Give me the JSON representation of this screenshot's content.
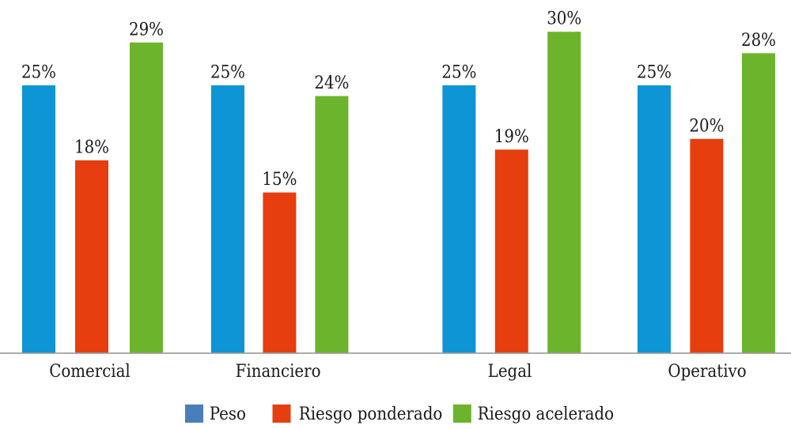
{
  "chart_data": {
    "type": "bar",
    "title": "",
    "xlabel": "",
    "ylabel": "",
    "categories": [
      "Comercial",
      "Financiero",
      "Legal",
      "Operativo"
    ],
    "series": [
      {
        "name": "Peso",
        "color": "#0D95D5",
        "legend_swatch_color": "#4A7EBB",
        "values": [
          25,
          25,
          25,
          25
        ],
        "labels": [
          "25%",
          "25%",
          "25%",
          "25%"
        ]
      },
      {
        "name": "Riesgo ponderado",
        "color": "#E63E0F",
        "legend_swatch_color": "#E63E0F",
        "values": [
          18,
          15,
          19,
          20
        ],
        "labels": [
          "18%",
          "15%",
          "19%",
          "20%"
        ]
      },
      {
        "name": "Riesgo acelerado",
        "color": "#6CB42C",
        "legend_swatch_color": "#6CB42C",
        "values": [
          29,
          24,
          30,
          28
        ],
        "labels": [
          "29%",
          "24%",
          "30%",
          "28%"
        ]
      }
    ],
    "value_format": "percent",
    "data_labels_visible": true,
    "legend": {
      "position": "bottom",
      "entries": [
        "Peso",
        "Riesgo ponderado",
        "Riesgo acelerado"
      ]
    },
    "grid": false,
    "y_axis_visible": false,
    "ylim": [
      0,
      31
    ],
    "baseline_color": "#9C9C9C",
    "text_color": "#1A1A1A",
    "background_color": "#FFFFFF"
  }
}
